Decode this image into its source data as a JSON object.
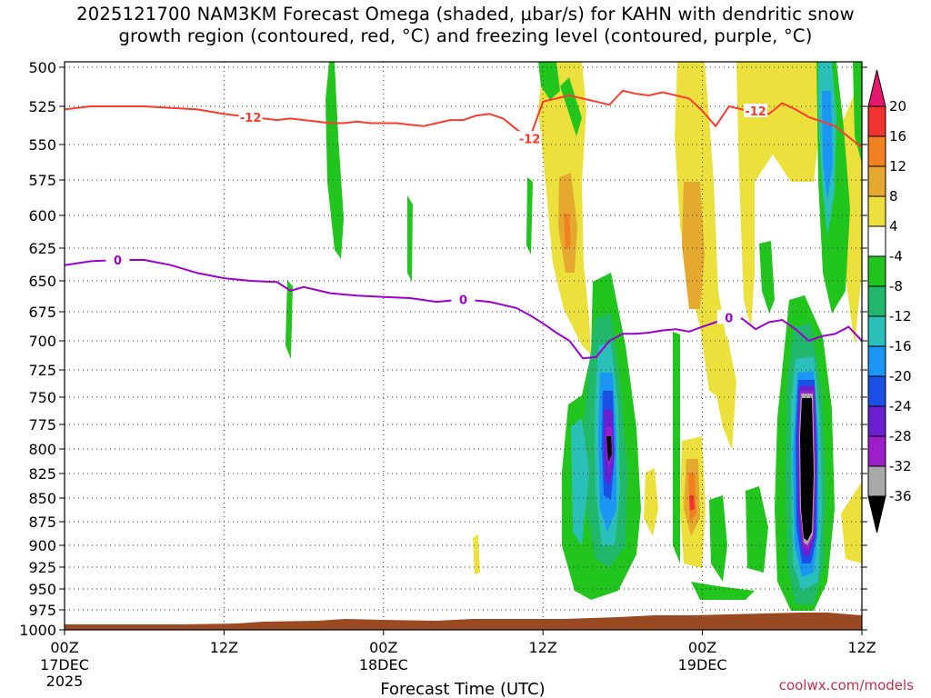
{
  "title": {
    "line1": "2025121700 NAM3KM Forecast Omega (shaded, μbar/s) for KAHN with dendritic snow",
    "line2": "growth region (contoured, red, °C) and freezing level (contoured, purple, °C)"
  },
  "credit": "coolwx.com/models",
  "chart_data": {
    "type": "heatmap",
    "xlabel": "Forecast Time (UTC)",
    "ylabel": "",
    "x_range_hours": [
      0,
      60
    ],
    "y_range_hPa": [
      500,
      1000
    ],
    "y_scale": "log-pressure (inverted)",
    "grid": true,
    "y_ticks": [
      "500",
      "525",
      "550",
      "575",
      "600",
      "625",
      "650",
      "675",
      "700",
      "725",
      "750",
      "775",
      "800",
      "825",
      "850",
      "875",
      "900",
      "925",
      "950",
      "975",
      "1000"
    ],
    "x_ticks": [
      {
        "hour": 0,
        "label": "00Z",
        "date": "17DEC",
        "year": "2025"
      },
      {
        "hour": 12,
        "label": "12Z",
        "date": "",
        "year": ""
      },
      {
        "hour": 24,
        "label": "00Z",
        "date": "18DEC",
        "year": ""
      },
      {
        "hour": 36,
        "label": "12Z",
        "date": "",
        "year": ""
      },
      {
        "hour": 48,
        "label": "00Z",
        "date": "19DEC",
        "year": ""
      },
      {
        "hour": 60,
        "label": "12Z",
        "date": "",
        "year": ""
      }
    ],
    "colorbar": {
      "levels": [
        "20",
        "16",
        "12",
        "8",
        "4",
        "-4",
        "-8",
        "-12",
        "-16",
        "-20",
        "-24",
        "-28",
        "-32",
        "-36"
      ],
      "colors": [
        "#e8176e",
        "#f0332e",
        "#f08020",
        "#e6a92f",
        "#ece13c",
        "#ffffff",
        "#22c41e",
        "#21b86c",
        "#2ac0b9",
        "#1b96f4",
        "#1b50e6",
        "#6a1fd0",
        "#9b1ec8",
        "#a8a8a8",
        "#000000"
      ]
    },
    "series": [
      {
        "name": "-12",
        "color": "#ff3b30",
        "x": [
          0,
          2,
          4,
          6,
          8,
          10,
          12,
          13,
          14,
          15,
          16,
          17,
          18,
          19,
          20,
          21,
          22,
          23,
          24,
          25,
          26,
          27,
          28,
          29,
          30,
          31,
          32,
          33,
          34,
          35,
          36,
          37,
          38,
          39,
          40,
          41,
          42,
          43,
          44,
          45,
          46,
          47,
          48,
          49,
          50,
          51,
          52,
          53,
          54,
          55,
          56,
          57,
          58,
          59,
          60
        ],
        "y": [
          527,
          525,
          525,
          525,
          526,
          527,
          530,
          531,
          532,
          533,
          534,
          533,
          534,
          535,
          536,
          536,
          535,
          536,
          536,
          536,
          537,
          538,
          536,
          534,
          534,
          531,
          530,
          533,
          540,
          546,
          522,
          520,
          518,
          520,
          522,
          524,
          515,
          517,
          518,
          516,
          518,
          520,
          528,
          538,
          525,
          527,
          528,
          530,
          523,
          527,
          532,
          535,
          538,
          545,
          552
        ]
      },
      {
        "name": "0",
        "color": "#9a00cc",
        "x": [
          0,
          2,
          4,
          6,
          8,
          10,
          12,
          14,
          16,
          17,
          18,
          20,
          22,
          24,
          26,
          28,
          30,
          32,
          34,
          35,
          36,
          37,
          38,
          39,
          40,
          41,
          42,
          43,
          44,
          45,
          46,
          47,
          48,
          49,
          50,
          51,
          52,
          53,
          54,
          55,
          56,
          57,
          58,
          59,
          60
        ],
        "y": [
          638,
          635,
          634,
          634,
          638,
          644,
          648,
          650,
          651,
          658,
          655,
          660,
          662,
          663,
          664,
          667,
          665,
          667,
          672,
          678,
          685,
          693,
          700,
          715,
          714,
          700,
          694,
          694,
          693,
          691,
          690,
          692,
          688,
          684,
          680,
          681,
          690,
          684,
          682,
          690,
          700,
          696,
          694,
          688,
          700
        ]
      }
    ]
  }
}
